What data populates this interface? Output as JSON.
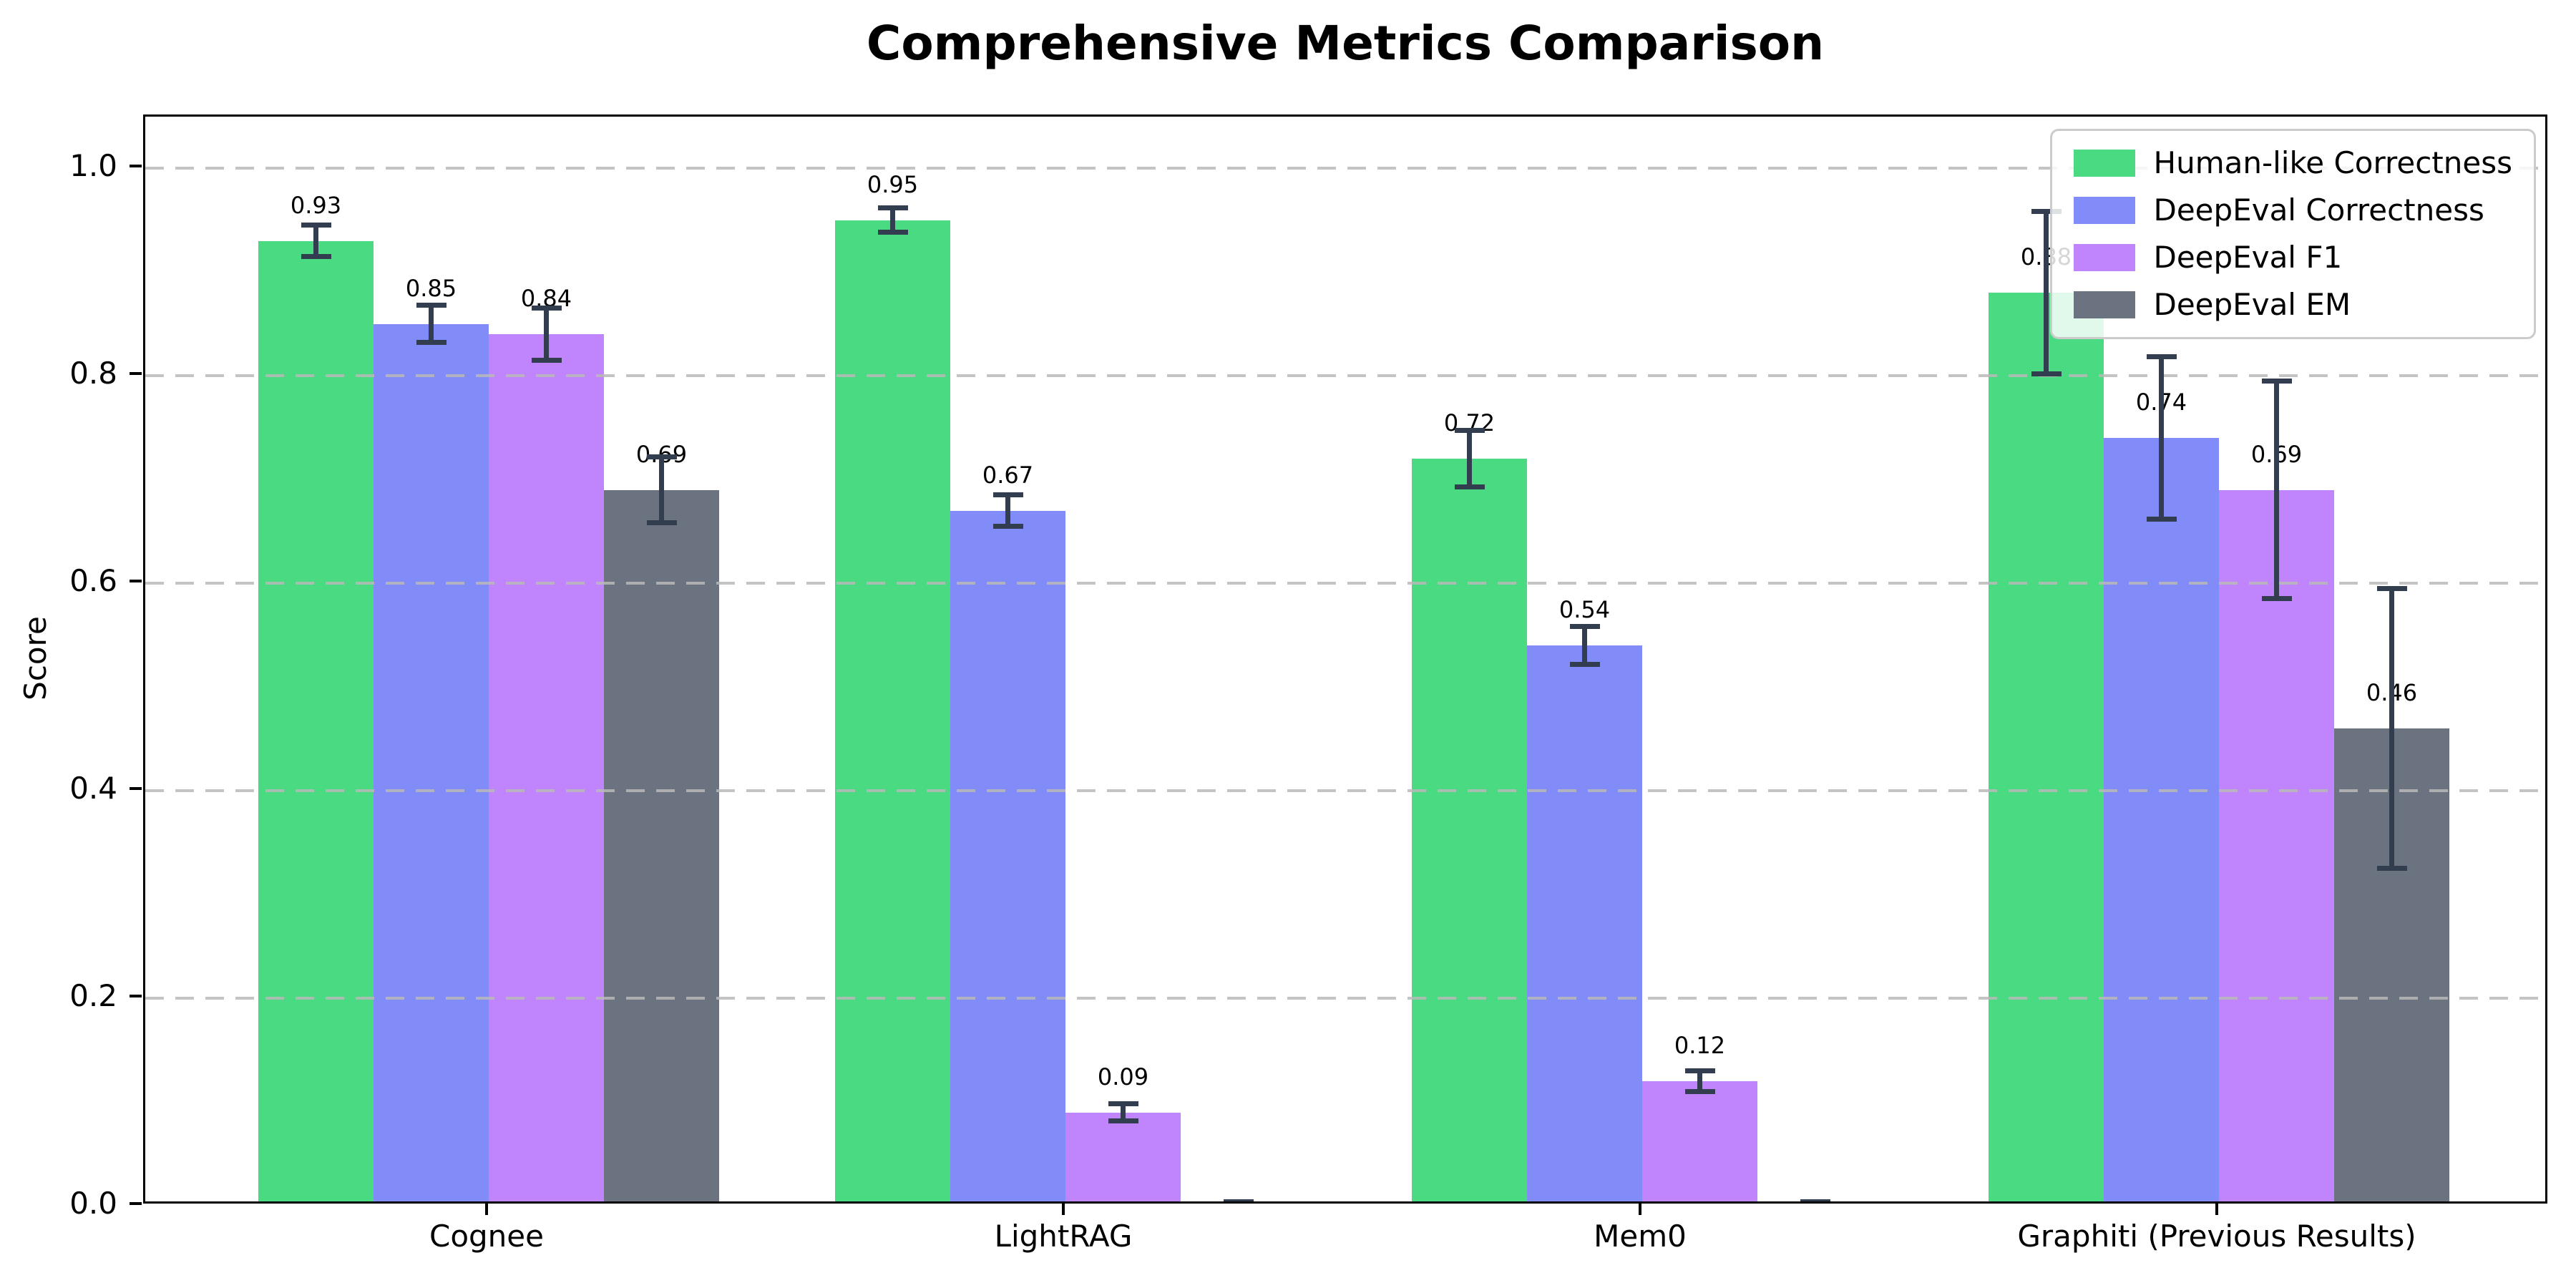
{
  "chart_data": {
    "type": "bar",
    "title": "Comprehensive Metrics Comparison",
    "ylabel": "Score",
    "categories": [
      "Cognee",
      "LightRAG",
      "Mem0",
      "Graphiti (Previous Results)"
    ],
    "ytick_labels": [
      "0.0",
      "0.2",
      "0.4",
      "0.6",
      "0.8",
      "1.0"
    ],
    "ylim": [
      0,
      1.05
    ],
    "grid": {
      "axis": "y",
      "style": "dashed",
      "color": "#b9b9b9",
      "drawn_over_bars": true
    },
    "legend": {
      "position": "upper right"
    },
    "error_bar_color": "#323e4f",
    "series": [
      {
        "name": "Human-like Correctness",
        "color": "#49da82",
        "values": [
          0.93,
          0.95,
          0.72,
          0.88
        ],
        "errors": [
          0.015,
          0.012,
          0.027,
          0.078
        ],
        "value_labels": [
          "0.93",
          "0.95",
          "0.72",
          "0.88"
        ]
      },
      {
        "name": "DeepEval Correctness",
        "color": "#818cf8",
        "values": [
          0.85,
          0.67,
          0.54,
          0.74
        ],
        "errors": [
          0.018,
          0.015,
          0.018,
          0.078
        ],
        "value_labels": [
          "0.85",
          "0.67",
          "0.54",
          "0.74"
        ]
      },
      {
        "name": "DeepEval F1",
        "color": "#c084fc",
        "values": [
          0.84,
          0.09,
          0.12,
          0.69
        ],
        "errors": [
          0.025,
          0.008,
          0.01,
          0.105
        ],
        "value_labels": [
          "0.84",
          "0.09",
          "0.12",
          "0.69"
        ]
      },
      {
        "name": "DeepEval EM",
        "color": "#6b7280",
        "values": [
          0.69,
          0.0,
          0.0,
          0.46
        ],
        "errors": [
          0.032,
          0.004,
          0.004,
          0.135
        ],
        "value_labels": [
          "0.69",
          "",
          "",
          "0.46"
        ]
      }
    ]
  }
}
